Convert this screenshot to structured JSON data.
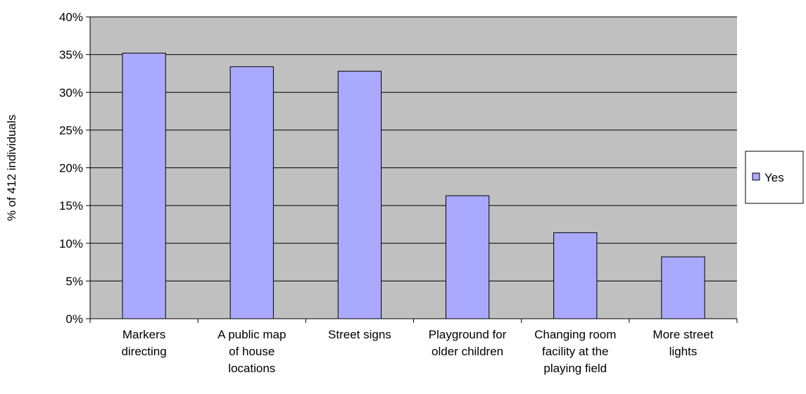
{
  "chart_data": {
    "type": "bar",
    "title": "",
    "xlabel": "",
    "ylabel": "% of 412 individuals",
    "ylim": [
      0,
      40
    ],
    "yticks": [
      "0%",
      "5%",
      "10%",
      "15%",
      "20%",
      "25%",
      "30%",
      "35%",
      "40%"
    ],
    "grid": true,
    "legend_position": "right",
    "categories": [
      [
        "Markers",
        "directing"
      ],
      [
        "A public map",
        "of house",
        "locations"
      ],
      [
        "Street signs"
      ],
      [
        "Playground for",
        "older children"
      ],
      [
        "Changing room",
        "facility at the",
        "playing field"
      ],
      [
        "More street",
        "lights"
      ]
    ],
    "series": [
      {
        "name": "Yes",
        "values": [
          35.2,
          33.4,
          32.8,
          16.3,
          11.4,
          8.2
        ]
      }
    ],
    "colors": {
      "plot_background": "#c0c0c0",
      "bar_fill": "#a9aaff",
      "bar_stroke": "#000000",
      "gridline": "#000000"
    }
  }
}
